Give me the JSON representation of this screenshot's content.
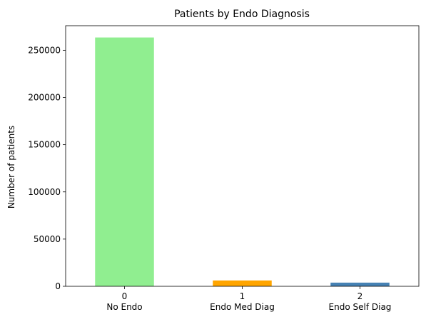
{
  "chart_data": {
    "type": "bar",
    "title": "Patients by Endo Diagnosis",
    "xlabel": "",
    "ylabel": "Number of patients",
    "categories": [
      "0",
      "1",
      "2"
    ],
    "category_sublabels": [
      "No Endo",
      "Endo Med Diag",
      "Endo Self Diag"
    ],
    "values": [
      263500,
      6200,
      3900
    ],
    "colors": [
      "#90ee90",
      "#ffa500",
      "#4682b4"
    ],
    "ylim": [
      0,
      276000
    ],
    "yticks": [
      0,
      50000,
      100000,
      150000,
      200000,
      250000
    ],
    "ytick_labels": [
      "0",
      "50000",
      "100000",
      "150000",
      "200000",
      "250000"
    ],
    "grid": false,
    "legend": "none"
  }
}
